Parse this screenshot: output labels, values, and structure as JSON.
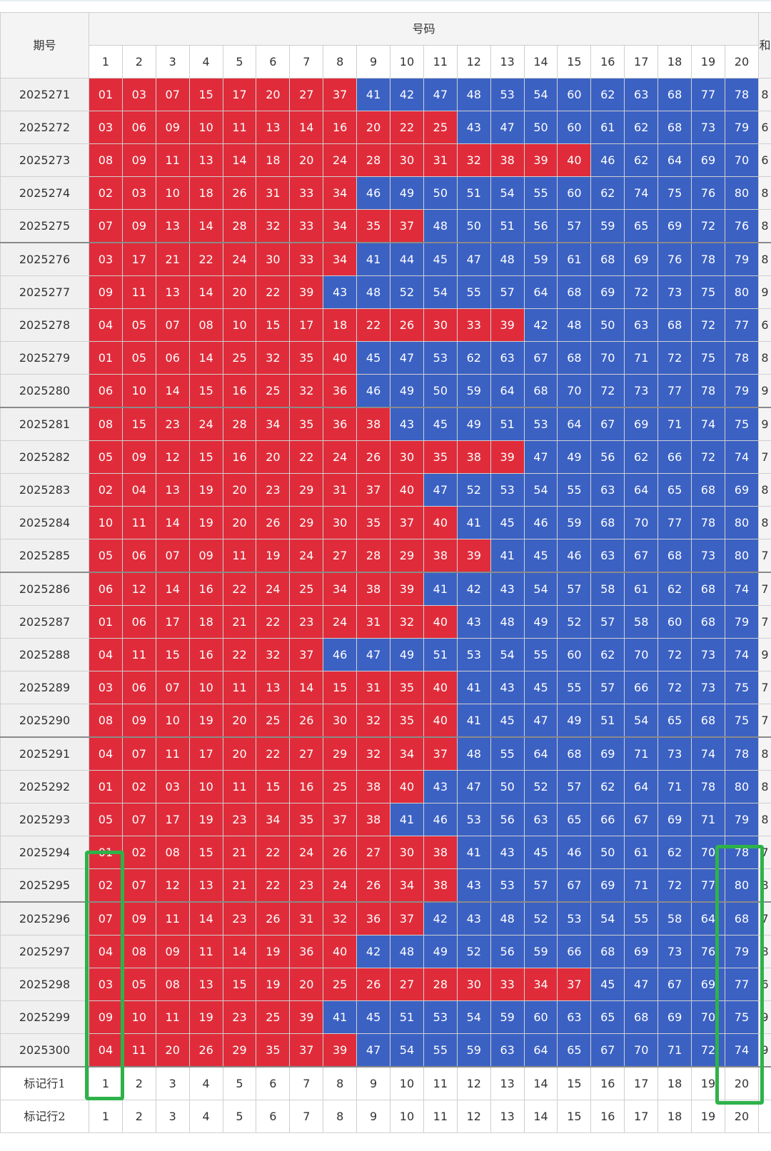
{
  "headers": {
    "period": "期号",
    "numbers": "号码",
    "sum": "和"
  },
  "columns": [
    "1",
    "2",
    "3",
    "4",
    "5",
    "6",
    "7",
    "8",
    "9",
    "10",
    "11",
    "12",
    "13",
    "14",
    "15",
    "16",
    "17",
    "18",
    "19",
    "20"
  ],
  "rows": [
    {
      "period": "2025271",
      "nums": [
        "01",
        "03",
        "07",
        "15",
        "17",
        "20",
        "27",
        "37",
        "41",
        "42",
        "47",
        "48",
        "53",
        "54",
        "60",
        "62",
        "63",
        "68",
        "77",
        "78"
      ],
      "red": 8,
      "sum": "8"
    },
    {
      "period": "2025272",
      "nums": [
        "03",
        "06",
        "09",
        "10",
        "11",
        "13",
        "14",
        "16",
        "20",
        "22",
        "25",
        "43",
        "47",
        "50",
        "60",
        "61",
        "62",
        "68",
        "73",
        "79"
      ],
      "red": 11,
      "sum": "6"
    },
    {
      "period": "2025273",
      "nums": [
        "08",
        "09",
        "11",
        "13",
        "14",
        "18",
        "20",
        "24",
        "28",
        "30",
        "31",
        "32",
        "38",
        "39",
        "40",
        "46",
        "62",
        "64",
        "69",
        "70"
      ],
      "red": 15,
      "sum": "6"
    },
    {
      "period": "2025274",
      "nums": [
        "02",
        "03",
        "10",
        "18",
        "26",
        "31",
        "33",
        "34",
        "46",
        "49",
        "50",
        "51",
        "54",
        "55",
        "60",
        "62",
        "74",
        "75",
        "76",
        "80"
      ],
      "red": 8,
      "sum": "8"
    },
    {
      "period": "2025275",
      "nums": [
        "07",
        "09",
        "13",
        "14",
        "28",
        "32",
        "33",
        "34",
        "35",
        "37",
        "48",
        "50",
        "51",
        "56",
        "57",
        "59",
        "65",
        "69",
        "72",
        "76"
      ],
      "red": 10,
      "sum": "8"
    },
    {
      "period": "2025276",
      "nums": [
        "03",
        "17",
        "21",
        "22",
        "24",
        "30",
        "33",
        "34",
        "41",
        "44",
        "45",
        "47",
        "48",
        "59",
        "61",
        "68",
        "69",
        "76",
        "78",
        "79"
      ],
      "red": 8,
      "sum": "8"
    },
    {
      "period": "2025277",
      "nums": [
        "09",
        "11",
        "13",
        "14",
        "20",
        "22",
        "39",
        "43",
        "48",
        "52",
        "54",
        "55",
        "57",
        "64",
        "68",
        "69",
        "72",
        "73",
        "75",
        "80"
      ],
      "red": 7,
      "sum": "9"
    },
    {
      "period": "2025278",
      "nums": [
        "04",
        "05",
        "07",
        "08",
        "10",
        "15",
        "17",
        "18",
        "22",
        "26",
        "30",
        "33",
        "39",
        "42",
        "48",
        "50",
        "63",
        "68",
        "72",
        "77"
      ],
      "red": 13,
      "sum": "6"
    },
    {
      "period": "2025279",
      "nums": [
        "01",
        "05",
        "06",
        "14",
        "25",
        "32",
        "35",
        "40",
        "45",
        "47",
        "53",
        "62",
        "63",
        "67",
        "68",
        "70",
        "71",
        "72",
        "75",
        "78"
      ],
      "red": 8,
      "sum": "8"
    },
    {
      "period": "2025280",
      "nums": [
        "06",
        "10",
        "14",
        "15",
        "16",
        "25",
        "32",
        "36",
        "46",
        "49",
        "50",
        "59",
        "64",
        "68",
        "70",
        "72",
        "73",
        "77",
        "78",
        "79"
      ],
      "red": 8,
      "sum": "9"
    },
    {
      "period": "2025281",
      "nums": [
        "08",
        "15",
        "23",
        "24",
        "28",
        "34",
        "35",
        "36",
        "38",
        "43",
        "45",
        "49",
        "51",
        "53",
        "64",
        "67",
        "69",
        "71",
        "74",
        "75"
      ],
      "red": 9,
      "sum": "9"
    },
    {
      "period": "2025282",
      "nums": [
        "05",
        "09",
        "12",
        "15",
        "16",
        "20",
        "22",
        "24",
        "26",
        "30",
        "35",
        "38",
        "39",
        "47",
        "49",
        "56",
        "62",
        "66",
        "72",
        "74"
      ],
      "red": 13,
      "sum": "7"
    },
    {
      "period": "2025283",
      "nums": [
        "02",
        "04",
        "13",
        "19",
        "20",
        "23",
        "29",
        "31",
        "37",
        "40",
        "47",
        "52",
        "53",
        "54",
        "55",
        "63",
        "64",
        "65",
        "68",
        "69"
      ],
      "red": 10,
      "sum": "8"
    },
    {
      "period": "2025284",
      "nums": [
        "10",
        "11",
        "14",
        "19",
        "20",
        "26",
        "29",
        "30",
        "35",
        "37",
        "40",
        "41",
        "45",
        "46",
        "59",
        "68",
        "70",
        "77",
        "78",
        "80"
      ],
      "red": 11,
      "sum": "8"
    },
    {
      "period": "2025285",
      "nums": [
        "05",
        "06",
        "07",
        "09",
        "11",
        "19",
        "24",
        "27",
        "28",
        "29",
        "38",
        "39",
        "41",
        "45",
        "46",
        "63",
        "67",
        "68",
        "73",
        "80"
      ],
      "red": 12,
      "sum": "7"
    },
    {
      "period": "2025286",
      "nums": [
        "06",
        "12",
        "14",
        "16",
        "22",
        "24",
        "25",
        "34",
        "38",
        "39",
        "41",
        "42",
        "43",
        "54",
        "57",
        "58",
        "61",
        "62",
        "68",
        "74"
      ],
      "red": 10,
      "sum": "7"
    },
    {
      "period": "2025287",
      "nums": [
        "01",
        "06",
        "17",
        "18",
        "21",
        "22",
        "23",
        "24",
        "31",
        "32",
        "40",
        "43",
        "48",
        "49",
        "52",
        "57",
        "58",
        "60",
        "68",
        "79"
      ],
      "red": 11,
      "sum": "7"
    },
    {
      "period": "2025288",
      "nums": [
        "04",
        "11",
        "15",
        "16",
        "22",
        "32",
        "37",
        "46",
        "47",
        "49",
        "51",
        "53",
        "54",
        "55",
        "60",
        "62",
        "70",
        "72",
        "73",
        "74"
      ],
      "red": 7,
      "sum": "9"
    },
    {
      "period": "2025289",
      "nums": [
        "03",
        "06",
        "07",
        "10",
        "11",
        "13",
        "14",
        "15",
        "31",
        "35",
        "40",
        "41",
        "43",
        "45",
        "55",
        "57",
        "66",
        "72",
        "73",
        "75"
      ],
      "red": 11,
      "sum": "7"
    },
    {
      "period": "2025290",
      "nums": [
        "08",
        "09",
        "10",
        "19",
        "20",
        "25",
        "26",
        "30",
        "32",
        "35",
        "40",
        "41",
        "45",
        "47",
        "49",
        "51",
        "54",
        "65",
        "68",
        "75"
      ],
      "red": 11,
      "sum": "7"
    },
    {
      "period": "2025291",
      "nums": [
        "04",
        "07",
        "11",
        "17",
        "20",
        "22",
        "27",
        "29",
        "32",
        "34",
        "37",
        "48",
        "55",
        "64",
        "68",
        "69",
        "71",
        "73",
        "74",
        "78"
      ],
      "red": 11,
      "sum": "8"
    },
    {
      "period": "2025292",
      "nums": [
        "01",
        "02",
        "03",
        "10",
        "11",
        "15",
        "16",
        "25",
        "38",
        "40",
        "43",
        "47",
        "50",
        "52",
        "57",
        "62",
        "64",
        "71",
        "78",
        "80"
      ],
      "red": 10,
      "sum": "8"
    },
    {
      "period": "2025293",
      "nums": [
        "05",
        "07",
        "17",
        "19",
        "23",
        "34",
        "35",
        "37",
        "38",
        "41",
        "46",
        "53",
        "56",
        "63",
        "65",
        "66",
        "67",
        "69",
        "71",
        "79"
      ],
      "red": 9,
      "sum": "8"
    },
    {
      "period": "2025294",
      "nums": [
        "01",
        "02",
        "08",
        "15",
        "21",
        "22",
        "24",
        "26",
        "27",
        "30",
        "38",
        "41",
        "43",
        "45",
        "46",
        "50",
        "61",
        "62",
        "70",
        "78"
      ],
      "red": 11,
      "sum": "7"
    },
    {
      "period": "2025295",
      "nums": [
        "02",
        "07",
        "12",
        "13",
        "21",
        "22",
        "23",
        "24",
        "26",
        "34",
        "38",
        "43",
        "53",
        "57",
        "67",
        "69",
        "71",
        "72",
        "77",
        "80"
      ],
      "red": 11,
      "sum": "8"
    },
    {
      "period": "2025296",
      "nums": [
        "07",
        "09",
        "11",
        "14",
        "23",
        "26",
        "31",
        "32",
        "36",
        "37",
        "42",
        "43",
        "48",
        "52",
        "53",
        "54",
        "55",
        "58",
        "64",
        "68"
      ],
      "red": 10,
      "sum": "7"
    },
    {
      "period": "2025297",
      "nums": [
        "04",
        "08",
        "09",
        "11",
        "14",
        "19",
        "36",
        "40",
        "42",
        "48",
        "49",
        "52",
        "56",
        "59",
        "66",
        "68",
        "69",
        "73",
        "76",
        "79"
      ],
      "red": 8,
      "sum": "8"
    },
    {
      "period": "2025298",
      "nums": [
        "03",
        "05",
        "08",
        "13",
        "15",
        "19",
        "20",
        "25",
        "26",
        "27",
        "28",
        "30",
        "33",
        "34",
        "37",
        "45",
        "47",
        "67",
        "69",
        "77"
      ],
      "red": 15,
      "sum": "6"
    },
    {
      "period": "2025299",
      "nums": [
        "09",
        "10",
        "11",
        "19",
        "23",
        "25",
        "39",
        "41",
        "45",
        "51",
        "53",
        "54",
        "59",
        "60",
        "63",
        "65",
        "68",
        "69",
        "70",
        "75"
      ],
      "red": 7,
      "sum": "9"
    },
    {
      "period": "2025300",
      "nums": [
        "04",
        "11",
        "20",
        "26",
        "29",
        "35",
        "37",
        "39",
        "47",
        "54",
        "55",
        "59",
        "63",
        "64",
        "65",
        "67",
        "70",
        "71",
        "72",
        "74"
      ],
      "red": 8,
      "sum": "9"
    }
  ],
  "mark_rows": [
    {
      "label": "标记行1",
      "values": [
        "1",
        "2",
        "3",
        "4",
        "5",
        "6",
        "7",
        "8",
        "9",
        "10",
        "11",
        "12",
        "13",
        "14",
        "15",
        "16",
        "17",
        "18",
        "19",
        "20"
      ]
    },
    {
      "label": "标记行2",
      "values": [
        "1",
        "2",
        "3",
        "4",
        "5",
        "6",
        "7",
        "8",
        "9",
        "10",
        "11",
        "12",
        "13",
        "14",
        "15",
        "16",
        "17",
        "18",
        "19",
        "20"
      ]
    }
  ],
  "colors": {
    "red": "#e02c3a",
    "blue": "#3b61c3",
    "highlight": "#2eb24a"
  }
}
